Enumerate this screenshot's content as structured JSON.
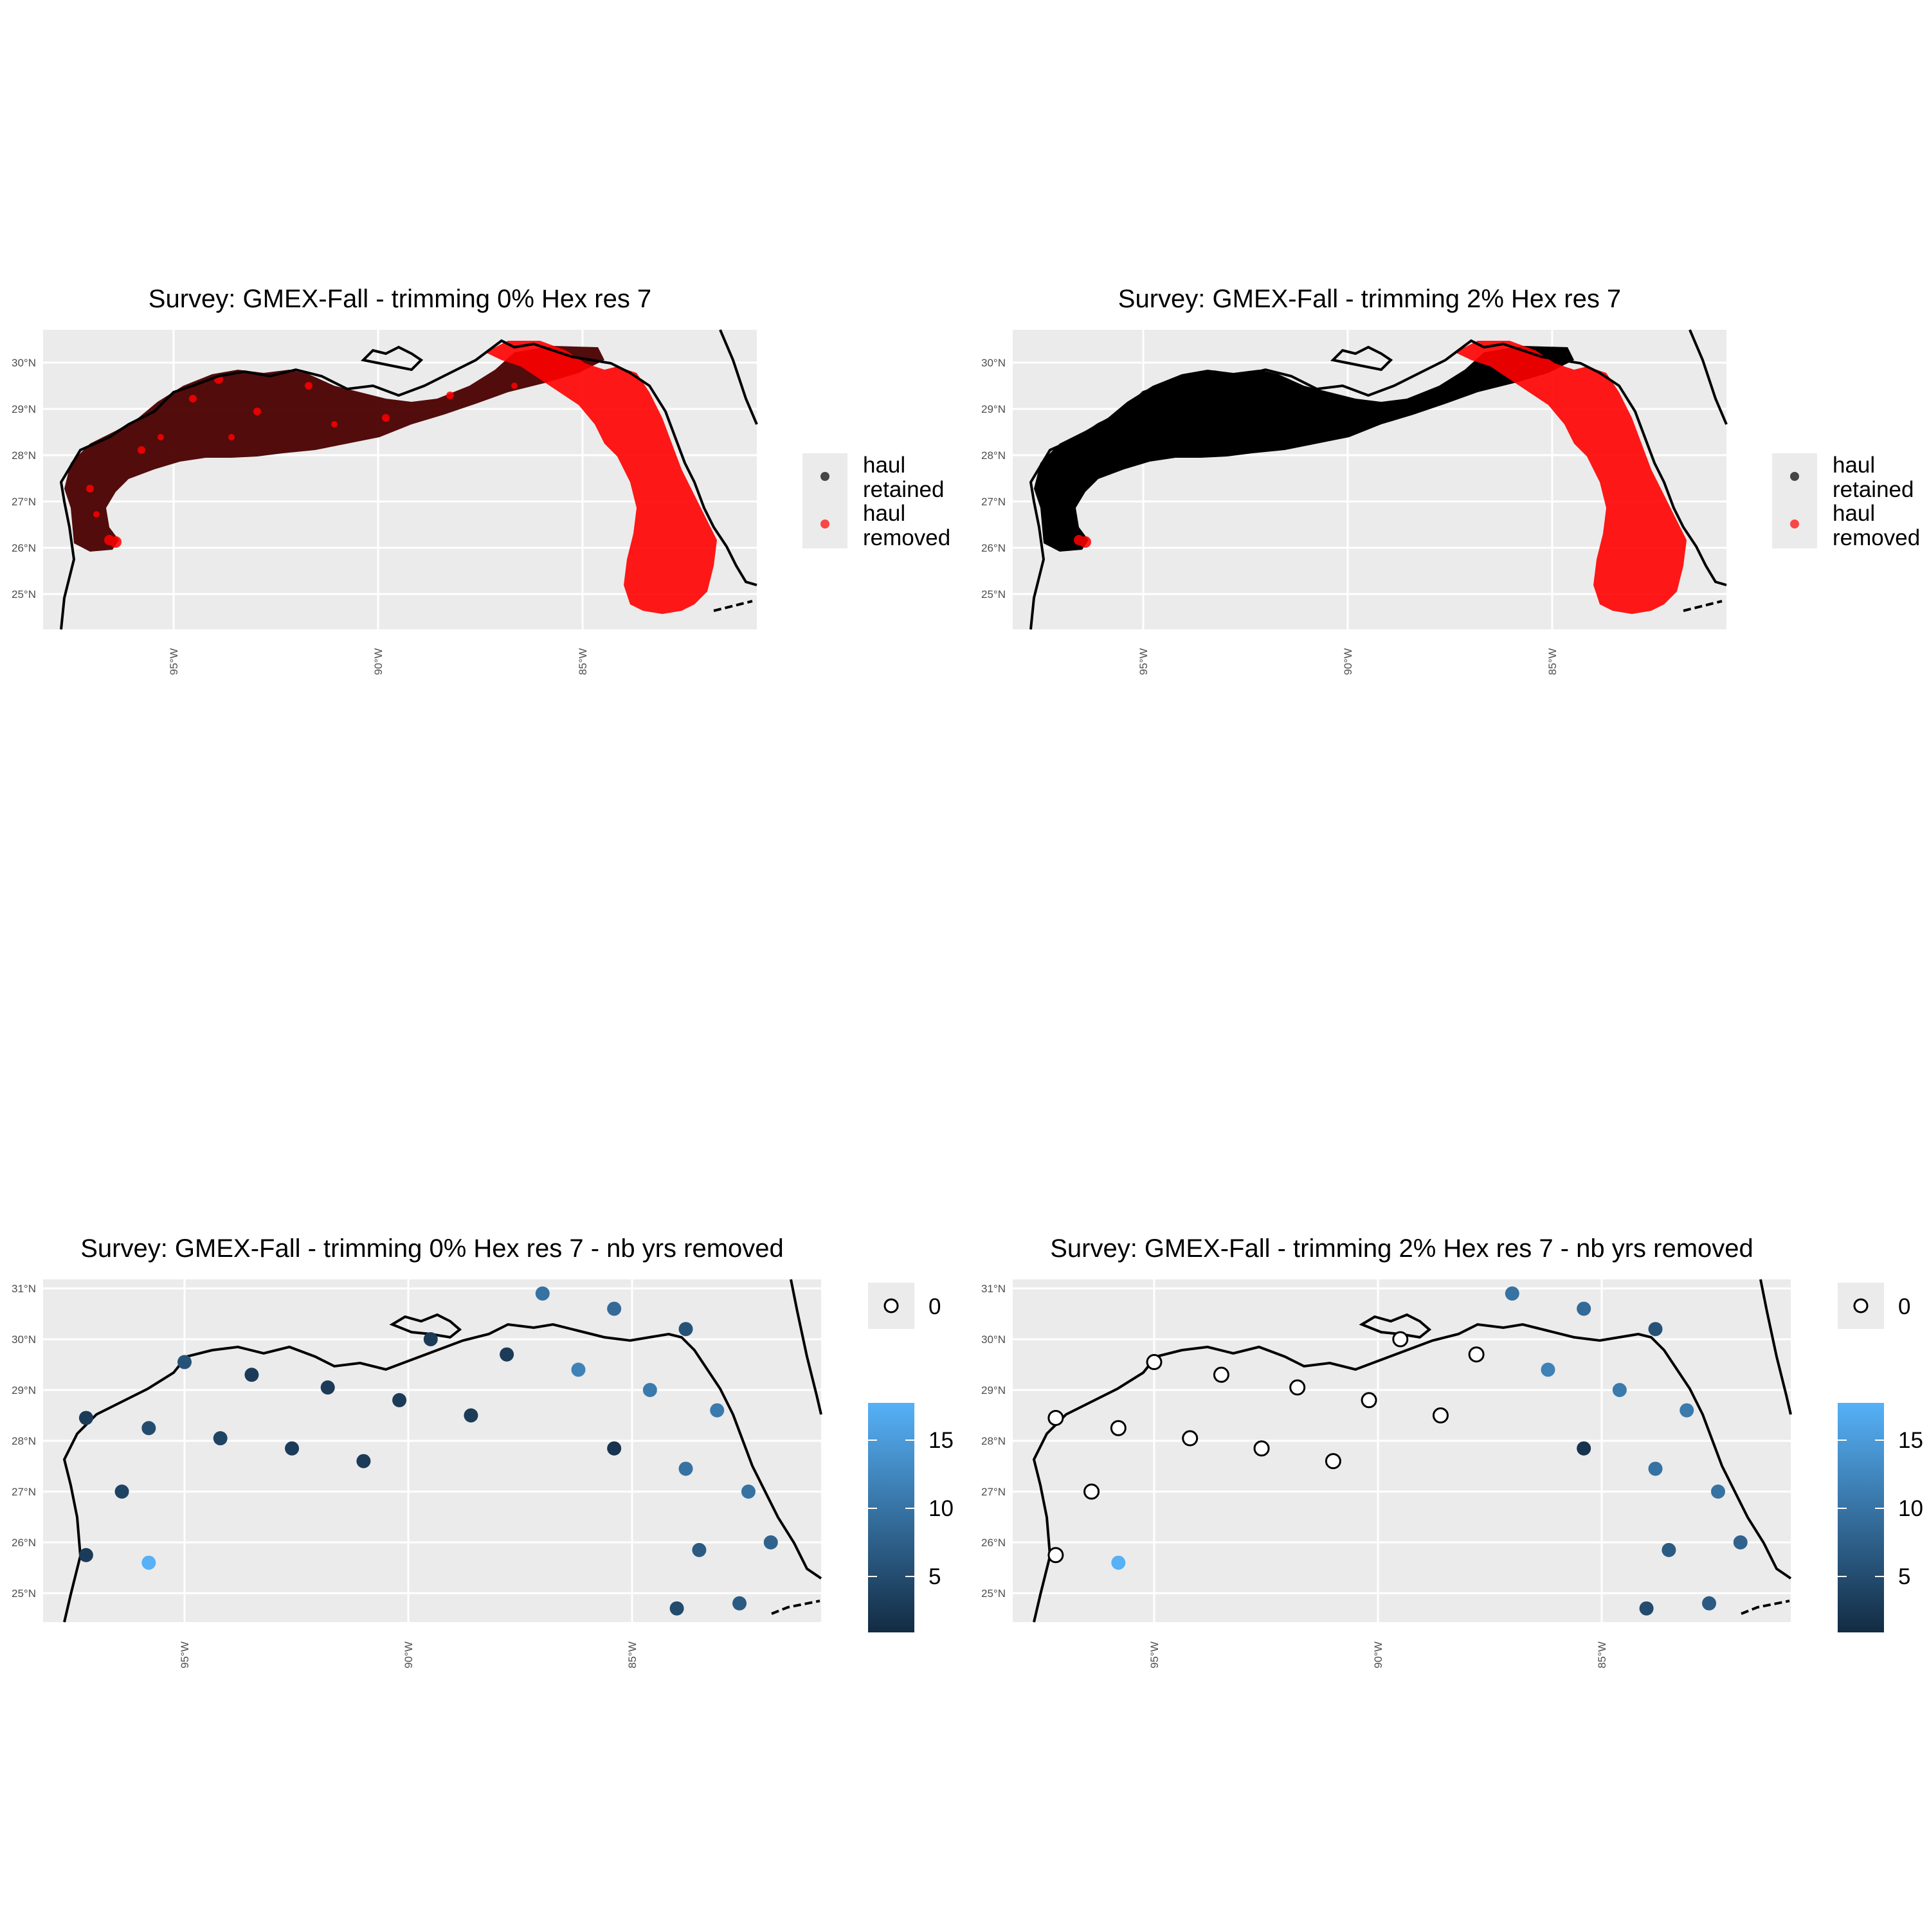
{
  "colors": {
    "panel_bg": "#ebebeb",
    "grid": "#ffffff",
    "retained": "#000000",
    "removed": "#ff0000",
    "gradient_low": "#132b43",
    "gradient_high": "#56b1f7",
    "coast": "#000000"
  },
  "panels": [
    {
      "title": "Survey: GMEX-Fall - trimming 0% Hex res 7",
      "y_ticks": [
        "30°N",
        "29°N",
        "28°N",
        "27°N",
        "26°N",
        "25°N"
      ],
      "x_ticks": [
        "95°W",
        "90°W",
        "85°W"
      ],
      "legend": [
        {
          "label_line1": "haul",
          "label_line2": "retained",
          "color": "#000000"
        },
        {
          "label_line1": "haul",
          "label_line2": "removed",
          "color": "#ff0000"
        }
      ],
      "west_region_color": "#4a0000"
    },
    {
      "title": "Survey: GMEX-Fall - trimming 2% Hex res 7",
      "y_ticks": [
        "30°N",
        "29°N",
        "28°N",
        "27°N",
        "26°N",
        "25°N"
      ],
      "x_ticks": [
        "95°W",
        "90°W",
        "85°W"
      ],
      "legend": [
        {
          "label_line1": "haul",
          "label_line2": "retained",
          "color": "#000000"
        },
        {
          "label_line1": "haul",
          "label_line2": "removed",
          "color": "#ff0000"
        }
      ],
      "west_region_color": "#000000"
    },
    {
      "title": "Survey: GMEX-Fall - trimming 0% Hex res 7 - nb yrs removed",
      "y_ticks": [
        "31°N",
        "30°N",
        "29°N",
        "28°N",
        "27°N",
        "26°N",
        "25°N"
      ],
      "x_ticks": [
        "95°W",
        "90°W",
        "85°W"
      ],
      "legend_zero": "0",
      "colorbar_ticks": [
        "15",
        "10",
        "5"
      ]
    },
    {
      "title": "Survey: GMEX-Fall - trimming 2% Hex res 7 - nb yrs removed",
      "y_ticks": [
        "31°N",
        "30°N",
        "29°N",
        "28°N",
        "27°N",
        "26°N",
        "25°N"
      ],
      "x_ticks": [
        "95°W",
        "90°W",
        "85°W"
      ],
      "legend_zero": "0",
      "colorbar_ticks": [
        "15",
        "10",
        "5"
      ]
    }
  ],
  "hex_points_0pct": [
    {
      "lon": -97.2,
      "lat": 28.45,
      "n": 3
    },
    {
      "lon": -96.4,
      "lat": 27.0,
      "n": 4
    },
    {
      "lon": -97.2,
      "lat": 25.75,
      "n": 3
    },
    {
      "lon": -95.8,
      "lat": 28.25,
      "n": 5
    },
    {
      "lon": -95.8,
      "lat": 25.6,
      "n": 18
    },
    {
      "lon": -95.0,
      "lat": 29.55,
      "n": 6
    },
    {
      "lon": -94.2,
      "lat": 28.05,
      "n": 4
    },
    {
      "lon": -93.5,
      "lat": 29.3,
      "n": 3
    },
    {
      "lon": -92.6,
      "lat": 27.85,
      "n": 3
    },
    {
      "lon": -91.8,
      "lat": 29.05,
      "n": 3
    },
    {
      "lon": -91.0,
      "lat": 27.6,
      "n": 3
    },
    {
      "lon": -90.2,
      "lat": 28.8,
      "n": 3
    },
    {
      "lon": -89.5,
      "lat": 30.0,
      "n": 3
    },
    {
      "lon": -88.6,
      "lat": 28.5,
      "n": 3
    },
    {
      "lon": -87.8,
      "lat": 29.7,
      "n": 3
    },
    {
      "lon": -87.0,
      "lat": 30.9,
      "n": 10
    },
    {
      "lon": -86.2,
      "lat": 29.4,
      "n": 12
    },
    {
      "lon": -85.4,
      "lat": 27.85,
      "n": 2
    },
    {
      "lon": -85.4,
      "lat": 30.6,
      "n": 9
    },
    {
      "lon": -84.6,
      "lat": 29.0,
      "n": 11
    },
    {
      "lon": -83.8,
      "lat": 30.2,
      "n": 6
    },
    {
      "lon": -83.8,
      "lat": 27.45,
      "n": 10
    },
    {
      "lon": -83.1,
      "lat": 28.6,
      "n": 11
    },
    {
      "lon": -83.5,
      "lat": 25.85,
      "n": 7
    },
    {
      "lon": -82.4,
      "lat": 27.0,
      "n": 10
    },
    {
      "lon": -81.9,
      "lat": 26.0,
      "n": 8
    },
    {
      "lon": -84.0,
      "lat": 24.7,
      "n": 5
    },
    {
      "lon": -82.6,
      "lat": 24.8,
      "n": 7
    }
  ],
  "hex_points_2pct": [
    {
      "lon": -97.2,
      "lat": 28.45,
      "n": 0
    },
    {
      "lon": -96.4,
      "lat": 27.0,
      "n": 0
    },
    {
      "lon": -97.2,
      "lat": 25.75,
      "n": 0
    },
    {
      "lon": -95.8,
      "lat": 28.25,
      "n": 0
    },
    {
      "lon": -95.8,
      "lat": 25.6,
      "n": 18
    },
    {
      "lon": -95.0,
      "lat": 29.55,
      "n": 0
    },
    {
      "lon": -94.2,
      "lat": 28.05,
      "n": 0
    },
    {
      "lon": -93.5,
      "lat": 29.3,
      "n": 0
    },
    {
      "lon": -92.6,
      "lat": 27.85,
      "n": 0
    },
    {
      "lon": -91.8,
      "lat": 29.05,
      "n": 0
    },
    {
      "lon": -91.0,
      "lat": 27.6,
      "n": 0
    },
    {
      "lon": -90.2,
      "lat": 28.8,
      "n": 0
    },
    {
      "lon": -89.5,
      "lat": 30.0,
      "n": 0
    },
    {
      "lon": -88.6,
      "lat": 28.5,
      "n": 0
    },
    {
      "lon": -87.8,
      "lat": 29.7,
      "n": 0
    },
    {
      "lon": -87.0,
      "lat": 30.9,
      "n": 10
    },
    {
      "lon": -86.2,
      "lat": 29.4,
      "n": 12
    },
    {
      "lon": -85.4,
      "lat": 27.85,
      "n": 2
    },
    {
      "lon": -85.4,
      "lat": 30.6,
      "n": 9
    },
    {
      "lon": -84.6,
      "lat": 29.0,
      "n": 11
    },
    {
      "lon": -83.8,
      "lat": 30.2,
      "n": 6
    },
    {
      "lon": -83.8,
      "lat": 27.45,
      "n": 10
    },
    {
      "lon": -83.1,
      "lat": 28.6,
      "n": 11
    },
    {
      "lon": -83.5,
      "lat": 25.85,
      "n": 7
    },
    {
      "lon": -82.4,
      "lat": 27.0,
      "n": 10
    },
    {
      "lon": -81.9,
      "lat": 26.0,
      "n": 8
    },
    {
      "lon": -84.0,
      "lat": 24.7,
      "n": 5
    },
    {
      "lon": -82.6,
      "lat": 24.8,
      "n": 7
    }
  ]
}
